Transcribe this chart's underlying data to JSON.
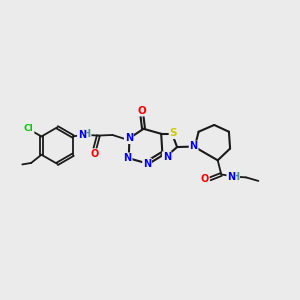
{
  "background_color": "#ebebeb",
  "bond_color": "#1a1a1a",
  "atom_colors": {
    "N": "#0000ff",
    "O": "#ff0000",
    "S": "#cccc00",
    "Cl": "#00cc00",
    "H": "#4a9090",
    "C": "#1a1a1a"
  },
  "figsize": [
    3.0,
    3.0
  ],
  "dpi": 100
}
